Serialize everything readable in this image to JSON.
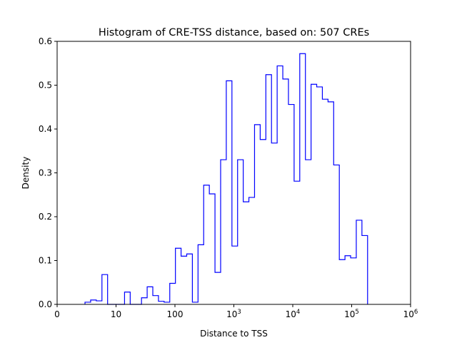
{
  "chart_data": {
    "type": "histogram",
    "title": "Histogram of CRE-TSS distance, based on: 507 CREs",
    "xlabel": "Distance to TSS",
    "ylabel": "Density",
    "x_scale": "log",
    "xlim_log10": [
      0,
      6
    ],
    "ylim": [
      0,
      0.6
    ],
    "x_ticks": [
      {
        "log10": 0,
        "base": "0",
        "exp": ""
      },
      {
        "log10": 1,
        "base": "10",
        "exp": ""
      },
      {
        "log10": 2,
        "base": "100",
        "exp": ""
      },
      {
        "log10": 3,
        "base": "10",
        "exp": "3"
      },
      {
        "log10": 4,
        "base": "10",
        "exp": "4"
      },
      {
        "log10": 5,
        "base": "10",
        "exp": "5"
      },
      {
        "log10": 6,
        "base": "10",
        "exp": "6"
      }
    ],
    "y_ticks": [
      "0.0",
      "0.1",
      "0.2",
      "0.3",
      "0.4",
      "0.5",
      "0.6"
    ],
    "grid": false,
    "line_color": "#0000ff",
    "bins_log10_start": 0.473,
    "bins_log10_end": 5.27,
    "densities": [
      0.005,
      0.01,
      0.008,
      0.068,
      0,
      0,
      0,
      0.028,
      0,
      0,
      0.015,
      0.04,
      0.02,
      0.007,
      0.005,
      0.048,
      0.128,
      0.11,
      0.115,
      0.005,
      0.136,
      0.272,
      0.252,
      0.073,
      0.33,
      0.51,
      0.133,
      0.33,
      0.234,
      0.244,
      0.41,
      0.376,
      0.524,
      0.368,
      0.544,
      0.514,
      0.456,
      0.281,
      0.572,
      0.33,
      0.502,
      0.496,
      0.468,
      0.462,
      0.318,
      0.102,
      0.111,
      0.106,
      0.192,
      0.157
    ]
  }
}
